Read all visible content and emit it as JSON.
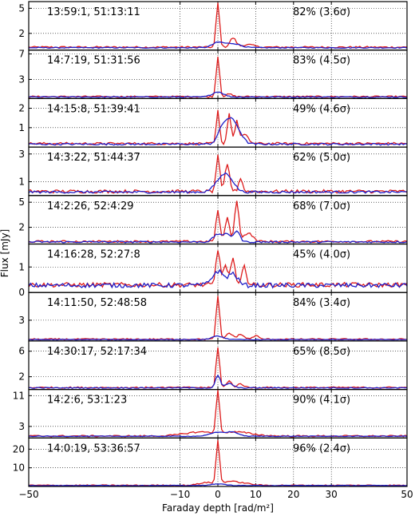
{
  "chart_data": {
    "type": "line",
    "xlabel": "Faraday depth [rad/m²]",
    "ylabel": "Flux [mJy]",
    "xlim": [
      -50,
      50
    ],
    "xticks": [
      -50,
      -10,
      0,
      10,
      20,
      30,
      50
    ],
    "xtick_labels": [
      "−50",
      "−10",
      "0",
      "10",
      "20",
      "30",
      "50"
    ],
    "grid": "dotted vertical lines at -10, 0, 10, 20, 30 and horizontal lines at labelled y ticks",
    "colors": {
      "red": "#dd1c1c",
      "blue": "#1f1fc8"
    },
    "panels": [
      {
        "position": "13:59:1, 51:13:11",
        "fraction": "82% (3.6σ)",
        "ylim": [
          0,
          5.8
        ],
        "yticks": [
          2,
          5
        ],
        "red": {
          "baseline": 0.35,
          "noise": 0.1,
          "peaks": [
            [
              0,
              5.3,
              0.45
            ],
            [
              4,
              1.1,
              0.8
            ],
            [
              8,
              0.3,
              1.5
            ]
          ]
        },
        "blue": {
          "baseline": 0.28,
          "noise": 0.06,
          "peaks": [
            [
              0,
              0.6,
              1.5
            ],
            [
              4,
              0.5,
              2.0
            ]
          ]
        }
      },
      {
        "position": "14:7:19, 51:31:56",
        "fraction": "83% (4.5σ)",
        "ylim": [
          0,
          7.6
        ],
        "yticks": [
          3,
          7
        ],
        "red": {
          "baseline": 0.3,
          "noise": 0.12,
          "peaks": [
            [
              0,
              6.3,
              0.45
            ],
            [
              3,
              0.4,
              0.8
            ]
          ]
        },
        "blue": {
          "baseline": 0.25,
          "noise": 0.08,
          "peaks": [
            [
              0,
              0.8,
              1.5
            ]
          ]
        }
      },
      {
        "position": "14:15:8, 51:39:41",
        "fraction": "49% (4.6σ)",
        "ylim": [
          0,
          2.5
        ],
        "yticks": [
          1,
          2
        ],
        "red": {
          "baseline": 0.18,
          "noise": 0.06,
          "peaks": [
            [
              0,
              1.7,
              0.4
            ],
            [
              3,
              1.55,
              0.5
            ],
            [
              5,
              1.1,
              0.5
            ],
            [
              7,
              0.45,
              1.0
            ]
          ]
        },
        "blue": {
          "baseline": 0.15,
          "noise": 0.05,
          "peaks": [
            [
              1,
              0.55,
              1.2
            ],
            [
              3,
              0.95,
              1.5
            ],
            [
              5,
              0.6,
              1.5
            ]
          ]
        }
      },
      {
        "position": "14:3:22, 51:44:37",
        "fraction": "62% (5.0σ)",
        "ylim": [
          0,
          3.5
        ],
        "yticks": [
          1,
          3
        ],
        "red": {
          "baseline": 0.3,
          "noise": 0.12,
          "peaks": [
            [
              0,
              2.7,
              0.45
            ],
            [
              2.5,
              1.9,
              0.6
            ],
            [
              6,
              1.0,
              0.5
            ]
          ]
        },
        "blue": {
          "baseline": 0.25,
          "noise": 0.08,
          "peaks": [
            [
              1,
              0.9,
              1.8
            ],
            [
              3,
              0.7,
              1.5
            ]
          ]
        }
      },
      {
        "position": "14:2:26, 52:4:29",
        "fraction": "68% (7.0σ)",
        "ylim": [
          0,
          5.8
        ],
        "yticks": [
          2,
          5
        ],
        "red": {
          "baseline": 0.3,
          "noise": 0.12,
          "peaks": [
            [
              0,
              3.7,
              0.5
            ],
            [
              2.5,
              2.8,
              0.6
            ],
            [
              5,
              4.8,
              0.55
            ],
            [
              8,
              1.0,
              1.2
            ]
          ]
        },
        "blue": {
          "baseline": 0.25,
          "noise": 0.1,
          "peaks": [
            [
              0,
              0.9,
              1.2
            ],
            [
              2.5,
              0.8,
              1.0
            ],
            [
              5,
              1.3,
              0.8
            ]
          ]
        }
      },
      {
        "position": "14:16:28, 52:27:8",
        "fraction": "45% (4.0σ)",
        "ylim": [
          0,
          1.9
        ],
        "yticks": [
          0,
          1
        ],
        "red": {
          "baseline": 0.3,
          "noise": 0.09,
          "peaks": [
            [
              0,
              1.35,
              0.5
            ],
            [
              4,
              1.0,
              0.5
            ],
            [
              7,
              0.85,
              0.5
            ],
            [
              2,
              0.7,
              0.8
            ]
          ]
        },
        "blue": {
          "baseline": 0.28,
          "noise": 0.09,
          "peaks": [
            [
              0,
              0.55,
              1.5
            ],
            [
              4,
              0.45,
              1.2
            ]
          ]
        }
      },
      {
        "position": "14:11:50, 52:48:58",
        "fraction": "84% (3.4σ)",
        "ylim": [
          0,
          7.0
        ],
        "yticks": [
          3
        ],
        "red": {
          "baseline": 0.25,
          "noise": 0.1,
          "peaks": [
            [
              0,
              6.2,
              0.45
            ],
            [
              3,
              0.9,
              0.8
            ],
            [
              6,
              0.7,
              0.9
            ],
            [
              10,
              0.5,
              0.8
            ]
          ]
        },
        "blue": {
          "baseline": 0.2,
          "noise": 0.05,
          "peaks": [
            [
              0,
              0.5,
              1.5
            ]
          ]
        }
      },
      {
        "position": "14:30:17, 52:17:34",
        "fraction": "65% (8.5σ)",
        "ylim": [
          0,
          7.6
        ],
        "yticks": [
          2,
          6
        ],
        "red": {
          "baseline": 0.3,
          "noise": 0.12,
          "peaks": [
            [
              0,
              6.4,
              0.45
            ],
            [
              3,
              1.0,
              0.7
            ],
            [
              6,
              0.6,
              0.8
            ]
          ]
        },
        "blue": {
          "baseline": 0.25,
          "noise": 0.08,
          "peaks": [
            [
              0,
              2.0,
              0.6
            ],
            [
              3,
              0.7,
              1.0
            ]
          ]
        }
      },
      {
        "position": "14:2:6, 53:1:23",
        "fraction": "90% (4.1σ)",
        "ylim": [
          0,
          12.6
        ],
        "yticks": [
          3,
          11
        ],
        "red": {
          "baseline": 0.5,
          "noise": 0.2,
          "peaks": [
            [
              0,
              11.0,
              0.45
            ],
            [
              -5,
              1.0,
              4.0
            ],
            [
              5,
              1.0,
              4.0
            ]
          ]
        },
        "blue": {
          "baseline": 0.45,
          "noise": 0.08,
          "peaks": [
            [
              0,
              1.0,
              2.0
            ],
            [
              4,
              1.0,
              1.5
            ]
          ]
        }
      },
      {
        "position": "14:0:19, 53:36:57",
        "fraction": "96% (2.4σ)",
        "ylim": [
          0,
          26
        ],
        "yticks": [
          10,
          20
        ],
        "red": {
          "baseline": 0.6,
          "noise": 0.3,
          "peaks": [
            [
              0,
              23.0,
              0.45
            ],
            [
              -3,
              1.5,
              2.0
            ],
            [
              3,
              2.0,
              2.0
            ],
            [
              7,
              1.0,
              2.0
            ]
          ]
        },
        "blue": {
          "baseline": 0.5,
          "noise": 0.15,
          "peaks": [
            [
              0,
              0.8,
              2.0
            ]
          ]
        }
      }
    ]
  }
}
